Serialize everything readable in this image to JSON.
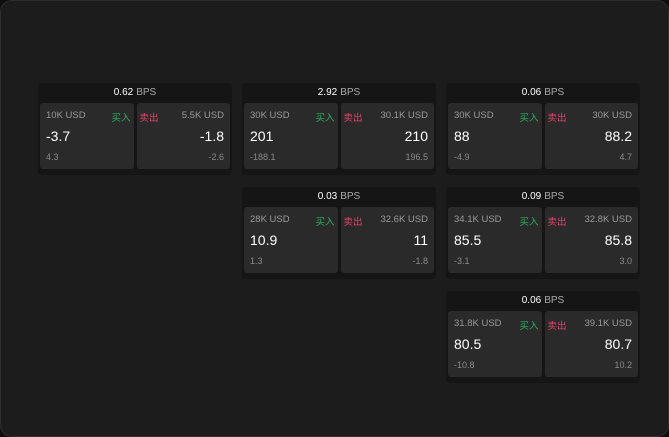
{
  "colors": {
    "buy": "#2fae5f",
    "sell": "#e0436a"
  },
  "cards": [
    {
      "bps": "0.62",
      "unit": "BPS",
      "buy": {
        "qty": "10K USD",
        "label": "买入",
        "price": "-3.7",
        "change": "4.3"
      },
      "sell": {
        "qty": "5.5K USD",
        "label": "卖出",
        "price": "-1.8",
        "change": "-2.6"
      }
    },
    {
      "bps": "2.92",
      "unit": "BPS",
      "buy": {
        "qty": "30K USD",
        "label": "买入",
        "price": "201",
        "change": "-188.1"
      },
      "sell": {
        "qty": "30.1K USD",
        "label": "卖出",
        "price": "210",
        "change": "196.5"
      }
    },
    {
      "bps": "0.06",
      "unit": "BPS",
      "buy": {
        "qty": "30K USD",
        "label": "买入",
        "price": "88",
        "change": "-4.9"
      },
      "sell": {
        "qty": "30K USD",
        "label": "卖出",
        "price": "88.2",
        "change": "4.7"
      }
    },
    {
      "bps": "0.03",
      "unit": "BPS",
      "buy": {
        "qty": "28K USD",
        "label": "买入",
        "price": "10.9",
        "change": "1.3"
      },
      "sell": {
        "qty": "32.6K USD",
        "label": "卖出",
        "price": "11",
        "change": "-1.8"
      }
    },
    {
      "bps": "0.09",
      "unit": "BPS",
      "buy": {
        "qty": "34.1K USD",
        "label": "买入",
        "price": "85.5",
        "change": "-3.1"
      },
      "sell": {
        "qty": "32.8K USD",
        "label": "卖出",
        "price": "85.8",
        "change": "3.0"
      }
    },
    {
      "bps": "0.06",
      "unit": "BPS",
      "buy": {
        "qty": "31.8K USD",
        "label": "买入",
        "price": "80.5",
        "change": "-10.8"
      },
      "sell": {
        "qty": "39.1K USD",
        "label": "卖出",
        "price": "80.7",
        "change": "10.2"
      }
    }
  ]
}
